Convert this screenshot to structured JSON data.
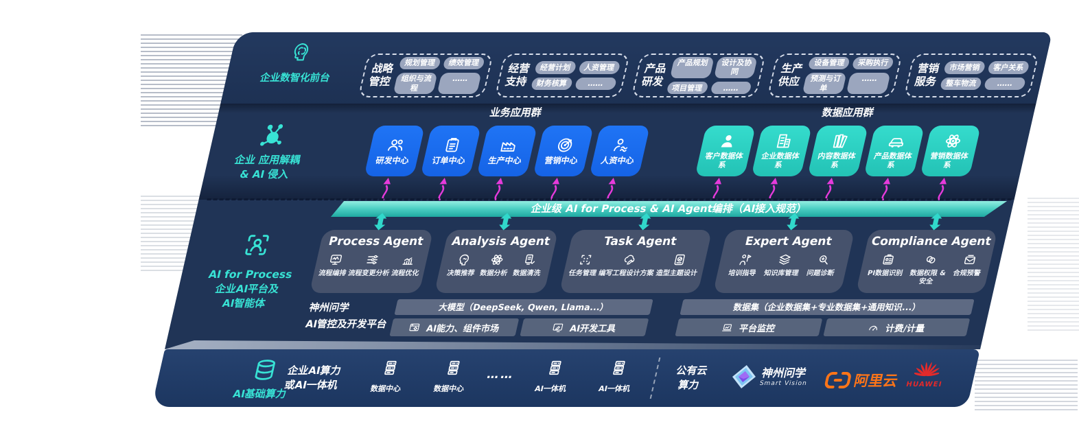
{
  "front_office": {
    "label": "企业数智化前台",
    "groups": [
      {
        "name": "战略\n管控",
        "icon": "strategy-group",
        "items": [
          "规划管理",
          "绩效管理",
          "组织与流程",
          "……"
        ]
      },
      {
        "name": "经营\n支持",
        "icon": "operations-group",
        "items": [
          "经营计划",
          "人资管理",
          "财务核算",
          "……"
        ]
      },
      {
        "name": "产品\n研发",
        "icon": "product-group",
        "items": [
          "产品规划",
          "设计及协同",
          "项目管理",
          "……"
        ]
      },
      {
        "name": "生产\n供应",
        "icon": "production-group",
        "items": [
          "设备管理",
          "采购执行",
          "预测与订单",
          "……"
        ]
      },
      {
        "name": "营销\n服务",
        "icon": "marketing-group",
        "items": [
          "市场营销",
          "客户关系",
          "整车物流",
          "……"
        ]
      }
    ]
  },
  "app_layer": {
    "label_line1": "企业 应用解耦",
    "label_line2": "& AI 侵入",
    "business_group": {
      "title": "业务应用群",
      "tiles": [
        {
          "label": "研发中心",
          "icon": "users-icon"
        },
        {
          "label": "订单中心",
          "icon": "clipboard-icon"
        },
        {
          "label": "生产中心",
          "icon": "factory-icon"
        },
        {
          "label": "营销中心",
          "icon": "target-icon"
        },
        {
          "label": "人资中心",
          "icon": "people-network-icon"
        }
      ]
    },
    "data_group": {
      "title": "数据应用群",
      "tiles": [
        {
          "label": "客户数据体系",
          "icon": "person-icon"
        },
        {
          "label": "企业数据体系",
          "icon": "building-icon"
        },
        {
          "label": "内容数据体系",
          "icon": "books-icon"
        },
        {
          "label": "产品数据体系",
          "icon": "car-icon"
        },
        {
          "label": "营销数据体系",
          "icon": "atom-icon"
        }
      ]
    }
  },
  "ai_bar": {
    "label": "企业级 AI for Process & AI Agent编排（AI接入规范）"
  },
  "agent_layer": {
    "label_line1": "AI for Process",
    "label_line2": "企业AI平台及",
    "label_line3": "AI智能体",
    "agents": [
      {
        "title": "Process Agent",
        "items": [
          {
            "label": "流程编排",
            "icon": "flow-monitor-icon"
          },
          {
            "label": "流程变更分析",
            "icon": "sliders-icon"
          },
          {
            "label": "流程优化",
            "icon": "optimize-icon"
          }
        ]
      },
      {
        "title": "Analysis Agent",
        "items": [
          {
            "label": "决策推荐",
            "icon": "decision-head-icon"
          },
          {
            "label": "数据分析",
            "icon": "atom-icon"
          },
          {
            "label": "数据清洗",
            "icon": "data-clean-icon"
          }
        ]
      },
      {
        "title": "Task Agent",
        "items": [
          {
            "label": "任务管理",
            "icon": "task-grid-icon"
          },
          {
            "label": "编写工程设计方案",
            "icon": "cloud-pen-icon"
          },
          {
            "label": "造型主题设计",
            "icon": "design-card-icon"
          }
        ]
      },
      {
        "title": "Expert Agent",
        "items": [
          {
            "label": "培训指导",
            "icon": "training-icon"
          },
          {
            "label": "知识库管理",
            "icon": "layers-icon"
          },
          {
            "label": "问题诊断",
            "icon": "diagnose-icon"
          }
        ]
      },
      {
        "title": "Compliance Agent",
        "items": [
          {
            "label": "PI数据识别",
            "icon": "id-card-icon"
          },
          {
            "label": "数据权限 & 安全",
            "icon": "link-circles-icon"
          },
          {
            "label": "合规预警",
            "icon": "mail-alert-icon"
          }
        ]
      }
    ]
  },
  "platform": {
    "label_line1": "神州问学",
    "label_line2": "AI管控及开发平台",
    "model_bar": "大模型（DeepSeek, Qwen, Llama...）",
    "dataset_bar": "数据集（企业数据集+专业数据集+通用知识...）",
    "left_cells": [
      {
        "label": "AI能力、组件市场",
        "icon": "window-gear-icon"
      },
      {
        "label": "AI开发工具",
        "icon": "screen-pen-icon"
      }
    ],
    "right_cells": [
      {
        "label": "平台监控",
        "icon": "monitor-chart-icon"
      },
      {
        "label": "计费/计量",
        "icon": "gauge-icon"
      }
    ]
  },
  "infra": {
    "label": "AI基础算力",
    "compute_line1": "企业AI算力",
    "compute_line2": "或AI一体机",
    "nodes": [
      {
        "label": "数据中心",
        "icon": "server-icon"
      },
      {
        "label": "数据中心",
        "icon": "server-icon"
      },
      {
        "label": "……",
        "icon": "dots"
      },
      {
        "label": "AI一体机",
        "icon": "server-icon"
      },
      {
        "label": "AI一体机",
        "icon": "server-icon"
      }
    ],
    "cloud_line1": "公有云",
    "cloud_line2": "算力",
    "logos": [
      {
        "name": "神州问学",
        "sub": "Smart Vision"
      },
      {
        "name": "阿里云"
      },
      {
        "name": "HUAWEI"
      }
    ]
  },
  "colors": {
    "navy": "#203456",
    "navy_bottom": "#1f3a63",
    "tile_blue": "#1a6cf3",
    "tile_teal": "#2fd3c5",
    "accent_teal": "#38e3d5",
    "bar_top": "#93eee1",
    "bar_bottom": "#1fa9a1",
    "magenta": "#e53bdb",
    "pill": "#9ba6be",
    "agent_box": "#49556e",
    "platform_bar": "#5e6a83",
    "platform_cell": "#57647c",
    "aliyun_orange": "#ff7518",
    "huawei_red": "#e42a2a"
  }
}
